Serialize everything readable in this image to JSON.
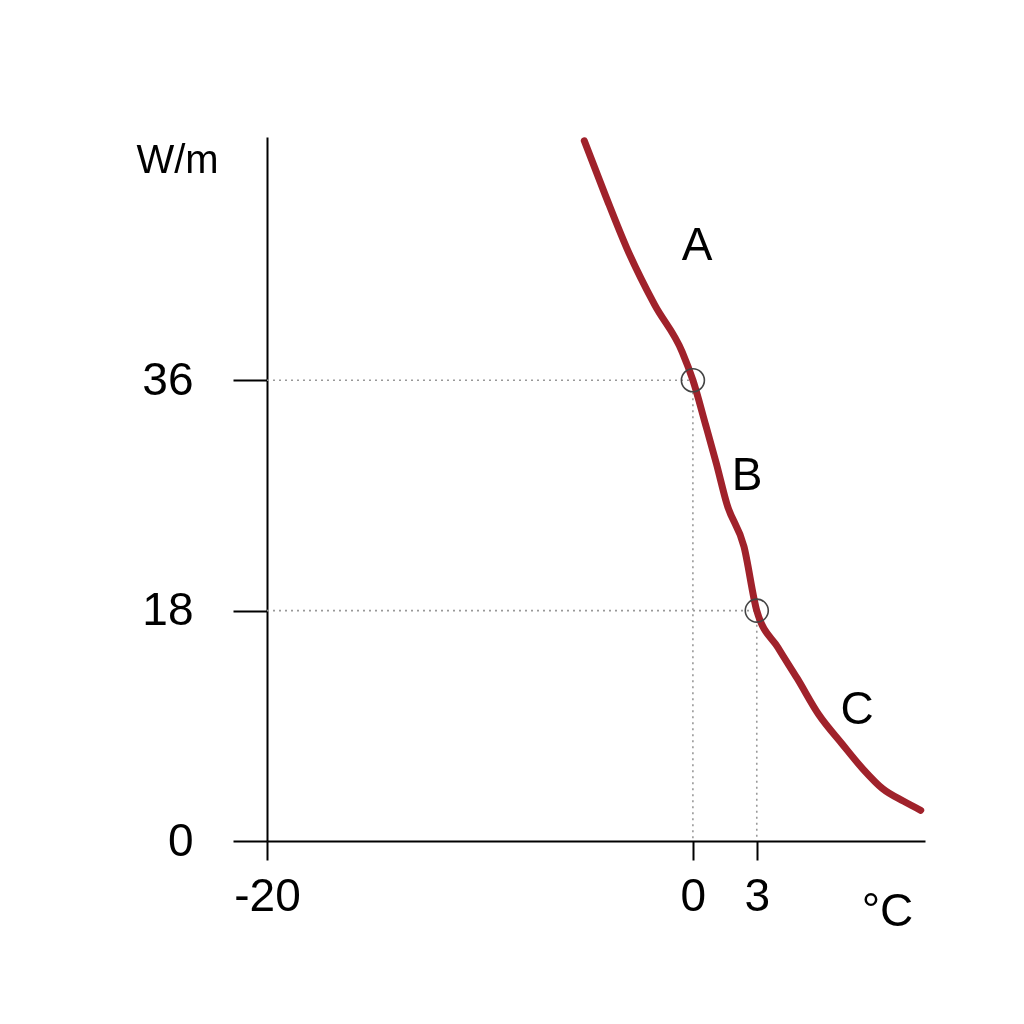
{
  "chart_data": {
    "type": "line",
    "xlabel": "°C",
    "ylabel": "W/m",
    "xlim": [
      -20,
      10.9
    ],
    "ylim": [
      0,
      55
    ],
    "xticks": [
      -20,
      0,
      3
    ],
    "yticks": [
      0,
      18,
      36
    ],
    "series": [
      {
        "color": "#999999",
        "line_style": "dotted",
        "x": [
          -20,
          0,
          0
        ],
        "values": [
          36,
          36,
          0
        ]
      },
      {
        "color": "#999999",
        "line_style": "dotted",
        "x": [
          -20,
          3,
          3
        ],
        "values": [
          18,
          18,
          0
        ]
      },
      {
        "color": "#a0222b",
        "line_style": "solid",
        "x": [
          -5.1,
          -4.1,
          -3.1,
          -1.8,
          -0.5,
          0,
          0.6,
          1.1,
          1.6,
          2.4,
          3,
          4.0,
          4.9,
          5.9,
          7.0,
          8.0,
          8.9,
          9.9,
          10.7
        ],
        "values": [
          54.7,
          50.4,
          46.3,
          41.9,
          38.2,
          36,
          32.5,
          29.5,
          26.3,
          23.0,
          18,
          15.1,
          12.7,
          9.9,
          7.6,
          5.6,
          4.1,
          3.1,
          2.4
        ]
      },
      {
        "type": "scatter",
        "color": "#444444",
        "marker": "circle",
        "x": [
          0,
          3
        ],
        "values": [
          36,
          18
        ]
      }
    ],
    "annotations": [
      "A",
      "B",
      "C"
    ]
  }
}
